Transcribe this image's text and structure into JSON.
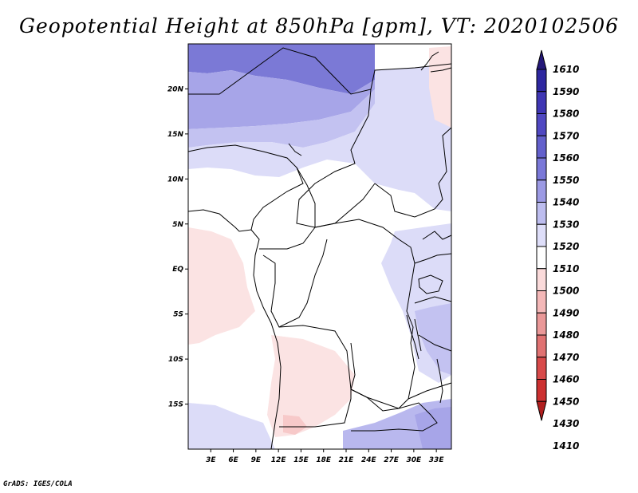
{
  "title": "Geopotential Height at 850hPa [gpm], VT: 2020102506",
  "credit": "GrADS: IGES/COLA",
  "map": {
    "lon_range": [
      0,
      35
    ],
    "lat_range": [
      -20,
      25
    ],
    "x_ticks": [
      3,
      6,
      9,
      12,
      15,
      18,
      21,
      24,
      27,
      30,
      33
    ],
    "x_tick_labels": [
      "3E",
      "6E",
      "9E",
      "12E",
      "15E",
      "18E",
      "21E",
      "24E",
      "27E",
      "30E",
      "33E"
    ],
    "y_ticks": [
      20,
      15,
      10,
      5,
      0,
      -5,
      -10,
      -15
    ],
    "y_tick_labels": [
      "20N",
      "15N",
      "10N",
      "5N",
      "EQ",
      "5S",
      "10S",
      "15S"
    ]
  },
  "colorbar": {
    "levels": [
      "1610",
      "1590",
      "1580",
      "1570",
      "1560",
      "1550",
      "1540",
      "1530",
      "1520",
      "1510",
      "1500",
      "1490",
      "1480",
      "1470",
      "1460",
      "1450",
      "1430",
      "1410"
    ],
    "colors": [
      "#241878",
      "#2e27a0",
      "#3f36b4",
      "#5048c2",
      "#6360cc",
      "#7a78d8",
      "#9c9ae4",
      "#bdbdef",
      "#dedef9",
      "#ffffff",
      "#fadada",
      "#f4b8b8",
      "#ea9898",
      "#e07272",
      "#d84a4a",
      "#cc3030",
      "#b01e1e"
    ]
  },
  "legend_icons": [
    "triangle-up-icon",
    "triangle-down-icon"
  ]
}
